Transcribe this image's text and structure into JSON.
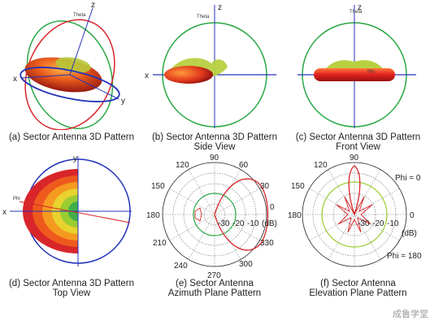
{
  "panels": [
    {
      "id": "a",
      "caption": [
        "(a) Sector Antenna 3D Pattern"
      ],
      "axes": {
        "z": "z",
        "x": "x",
        "y": "y",
        "theta": "Theta"
      }
    },
    {
      "id": "b",
      "caption": [
        "(b) Sector Antenna 3D Pattern",
        "Side View"
      ],
      "axes": {
        "z": "z",
        "x": "x",
        "theta": "Theta"
      }
    },
    {
      "id": "c",
      "caption": [
        "(c) Sector Antenna 3D Pattern",
        "Front View"
      ],
      "axes": {
        "z": "z",
        "phi": "Phi",
        "theta": "Theta"
      }
    },
    {
      "id": "d",
      "caption": [
        "(d) Sector Antenna 3D Pattern",
        "Top View"
      ],
      "axes": {
        "y": "y",
        "x": "x",
        "phi": "Phi"
      }
    },
    {
      "id": "e",
      "caption": [
        "(e) Sector Antenna",
        "Azimuth Plane Pattern"
      ],
      "angle_labels": [
        "90",
        "60",
        "30",
        "0",
        "330",
        "300",
        "270",
        "240",
        "210",
        "180",
        "150",
        "120"
      ],
      "ring_labels": [
        "-30",
        "-20",
        "-10"
      ],
      "unit": "(dB)"
    },
    {
      "id": "f",
      "caption": [
        "(f) Sector Antenna",
        "Elevation Plane Pattern"
      ],
      "angle_labels": [
        "90",
        "120",
        "150",
        "180"
      ],
      "ring_labels": [
        "-30",
        "-20",
        "-10"
      ],
      "right_label": "0",
      "unit": "(dB)",
      "phi0": "Phi = 0",
      "phi180": "Phi = 180"
    }
  ],
  "watermark": "成鲁学堂",
  "colors": {
    "red": "#d8262b",
    "green": "#2aa845",
    "blue": "#2433b8",
    "yellowgreen": "#9acd32"
  }
}
